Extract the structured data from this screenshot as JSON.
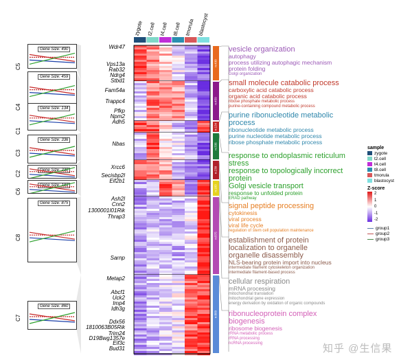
{
  "columns": [
    "zygote",
    "t2.cell",
    "t4.cell",
    "t8.cell",
    "tmorula",
    "blastocyst"
  ],
  "column_colors": [
    "#1f4e79",
    "#7fd8c8",
    "#c02ed8",
    "#2a8fb0",
    "#d8585a",
    "#7fe0e0"
  ],
  "clusters": [
    {
      "name": "C5",
      "n": "n:490",
      "color": "#e86a1e",
      "gene_size": "Gene Size: 490"
    },
    {
      "name": "C4",
      "n": "n:459",
      "color": "#8b1a8b",
      "gene_size": "Gene Size: 459"
    },
    {
      "name": "C1",
      "n": "n:134",
      "color": "#c62828",
      "gene_size": "Gene Size: 134"
    },
    {
      "name": "C3",
      "n": "n:336",
      "color": "#1e7b3c",
      "gene_size": "Gene Size: 336"
    },
    {
      "name": "C2",
      "n": "n:230",
      "color": "#b0202a",
      "gene_size": "Gene Size: 230"
    },
    {
      "name": "C6",
      "n": "n:183",
      "color": "#e6d21e",
      "gene_size": "Gene Size: 183"
    },
    {
      "name": "C8",
      "n": "n:875",
      "color": "#b34ab3",
      "gene_size": "Gene Size: 875"
    },
    {
      "name": "C7",
      "n": "n:860",
      "color": "#5a8bd8",
      "gene_size": "Gene Size: 860"
    }
  ],
  "genes": [
    "Wdr47",
    "Vps13a",
    "Rab32",
    "Ndrg4",
    "Stbd1",
    "Fam54a",
    "Trappc4",
    "Pfkp",
    "Npm2",
    "Adh5",
    "Nbas",
    "Xrcc6",
    "Secisbp2l",
    "Eif2b1",
    "Ash2l",
    "Cnn2",
    "1300001I01Rik",
    "Thrap3",
    "Sarnp",
    "Metap2",
    "Abcf1",
    "Uck2",
    "Imp4",
    "Idh3g",
    "Ddx56",
    "1810063B05Rik",
    "Trim24",
    "D19Bwg1357e",
    "Eif3c",
    "Bud31"
  ],
  "go_terms": [
    {
      "color": "#9b59b6",
      "title": [
        "vesicle organization"
      ],
      "sub": [
        "autophagy",
        "process utilizing autophagic mechanism",
        "protein folding"
      ],
      "small": [
        "Golgi organization"
      ]
    },
    {
      "color": "#c0392b",
      "title": [
        "small molecule catabolic process"
      ],
      "sub": [
        "carboxylic acid catabolic process",
        "organic acid catabolic process"
      ],
      "small": [
        "ribose phosphate metabolic process",
        "purine-containing compound metabolic process"
      ]
    },
    {
      "color": "#2e86ab",
      "title": [
        "purine ribonucleotide metabolic",
        "process"
      ],
      "sub": [
        "ribonucleotide metabolic process",
        "purine nucleotide metabolic process",
        "ribose phosphate metabolic process"
      ],
      "small": []
    },
    {
      "color": "#2ca02c",
      "title": [
        "response to endoplasmic reticulum",
        "stress",
        "response to topologically incorrect",
        "protein",
        "Golgi vesicle transport"
      ],
      "sub": [
        "response to unfolded protein"
      ],
      "small": [
        "ERAD pathway"
      ]
    },
    {
      "color": "#e67e22",
      "title": [
        "signal peptide processing"
      ],
      "sub": [
        "cytokinesis",
        "viral process",
        "viral life cycle"
      ],
      "small": [
        "regulation of stem cell population maintenance"
      ]
    },
    {
      "color": "#8b5a4a",
      "title": [
        "establishment of protein",
        "localization to organelle",
        "organelle disassembly"
      ],
      "sub": [
        "NLS-bearing protein import into nucleus"
      ],
      "small": [
        "intermediate filament cytoskeleton organization",
        "intermediate filament-based process"
      ]
    },
    {
      "color": "#888888",
      "title": [
        "cellular respiration"
      ],
      "sub": [
        "mRNA processing"
      ],
      "small": [
        "mitochondrial translation",
        "mitochondrial gene expression",
        "energy derivation by oxidation of organic compounds"
      ]
    },
    {
      "color": "#d35fb7",
      "title": [
        "ribonucleoprotein complex",
        "biogenesis"
      ],
      "sub": [
        "ribosome biogenesis"
      ],
      "small": [
        "rRNA metabolic process",
        "rRNA processing",
        "ncRNA processing"
      ]
    }
  ],
  "legend": {
    "sample_title": "sample",
    "zscore_title": "Z-score",
    "zscore_ticks": [
      "2",
      "1",
      "0",
      "-1",
      "-2"
    ],
    "groups": [
      "group1",
      "group2",
      "group3"
    ],
    "group_colors": [
      "#5a7fa8",
      "#c05050",
      "#4a8a4a"
    ]
  },
  "watermark": "知乎 @生信果"
}
